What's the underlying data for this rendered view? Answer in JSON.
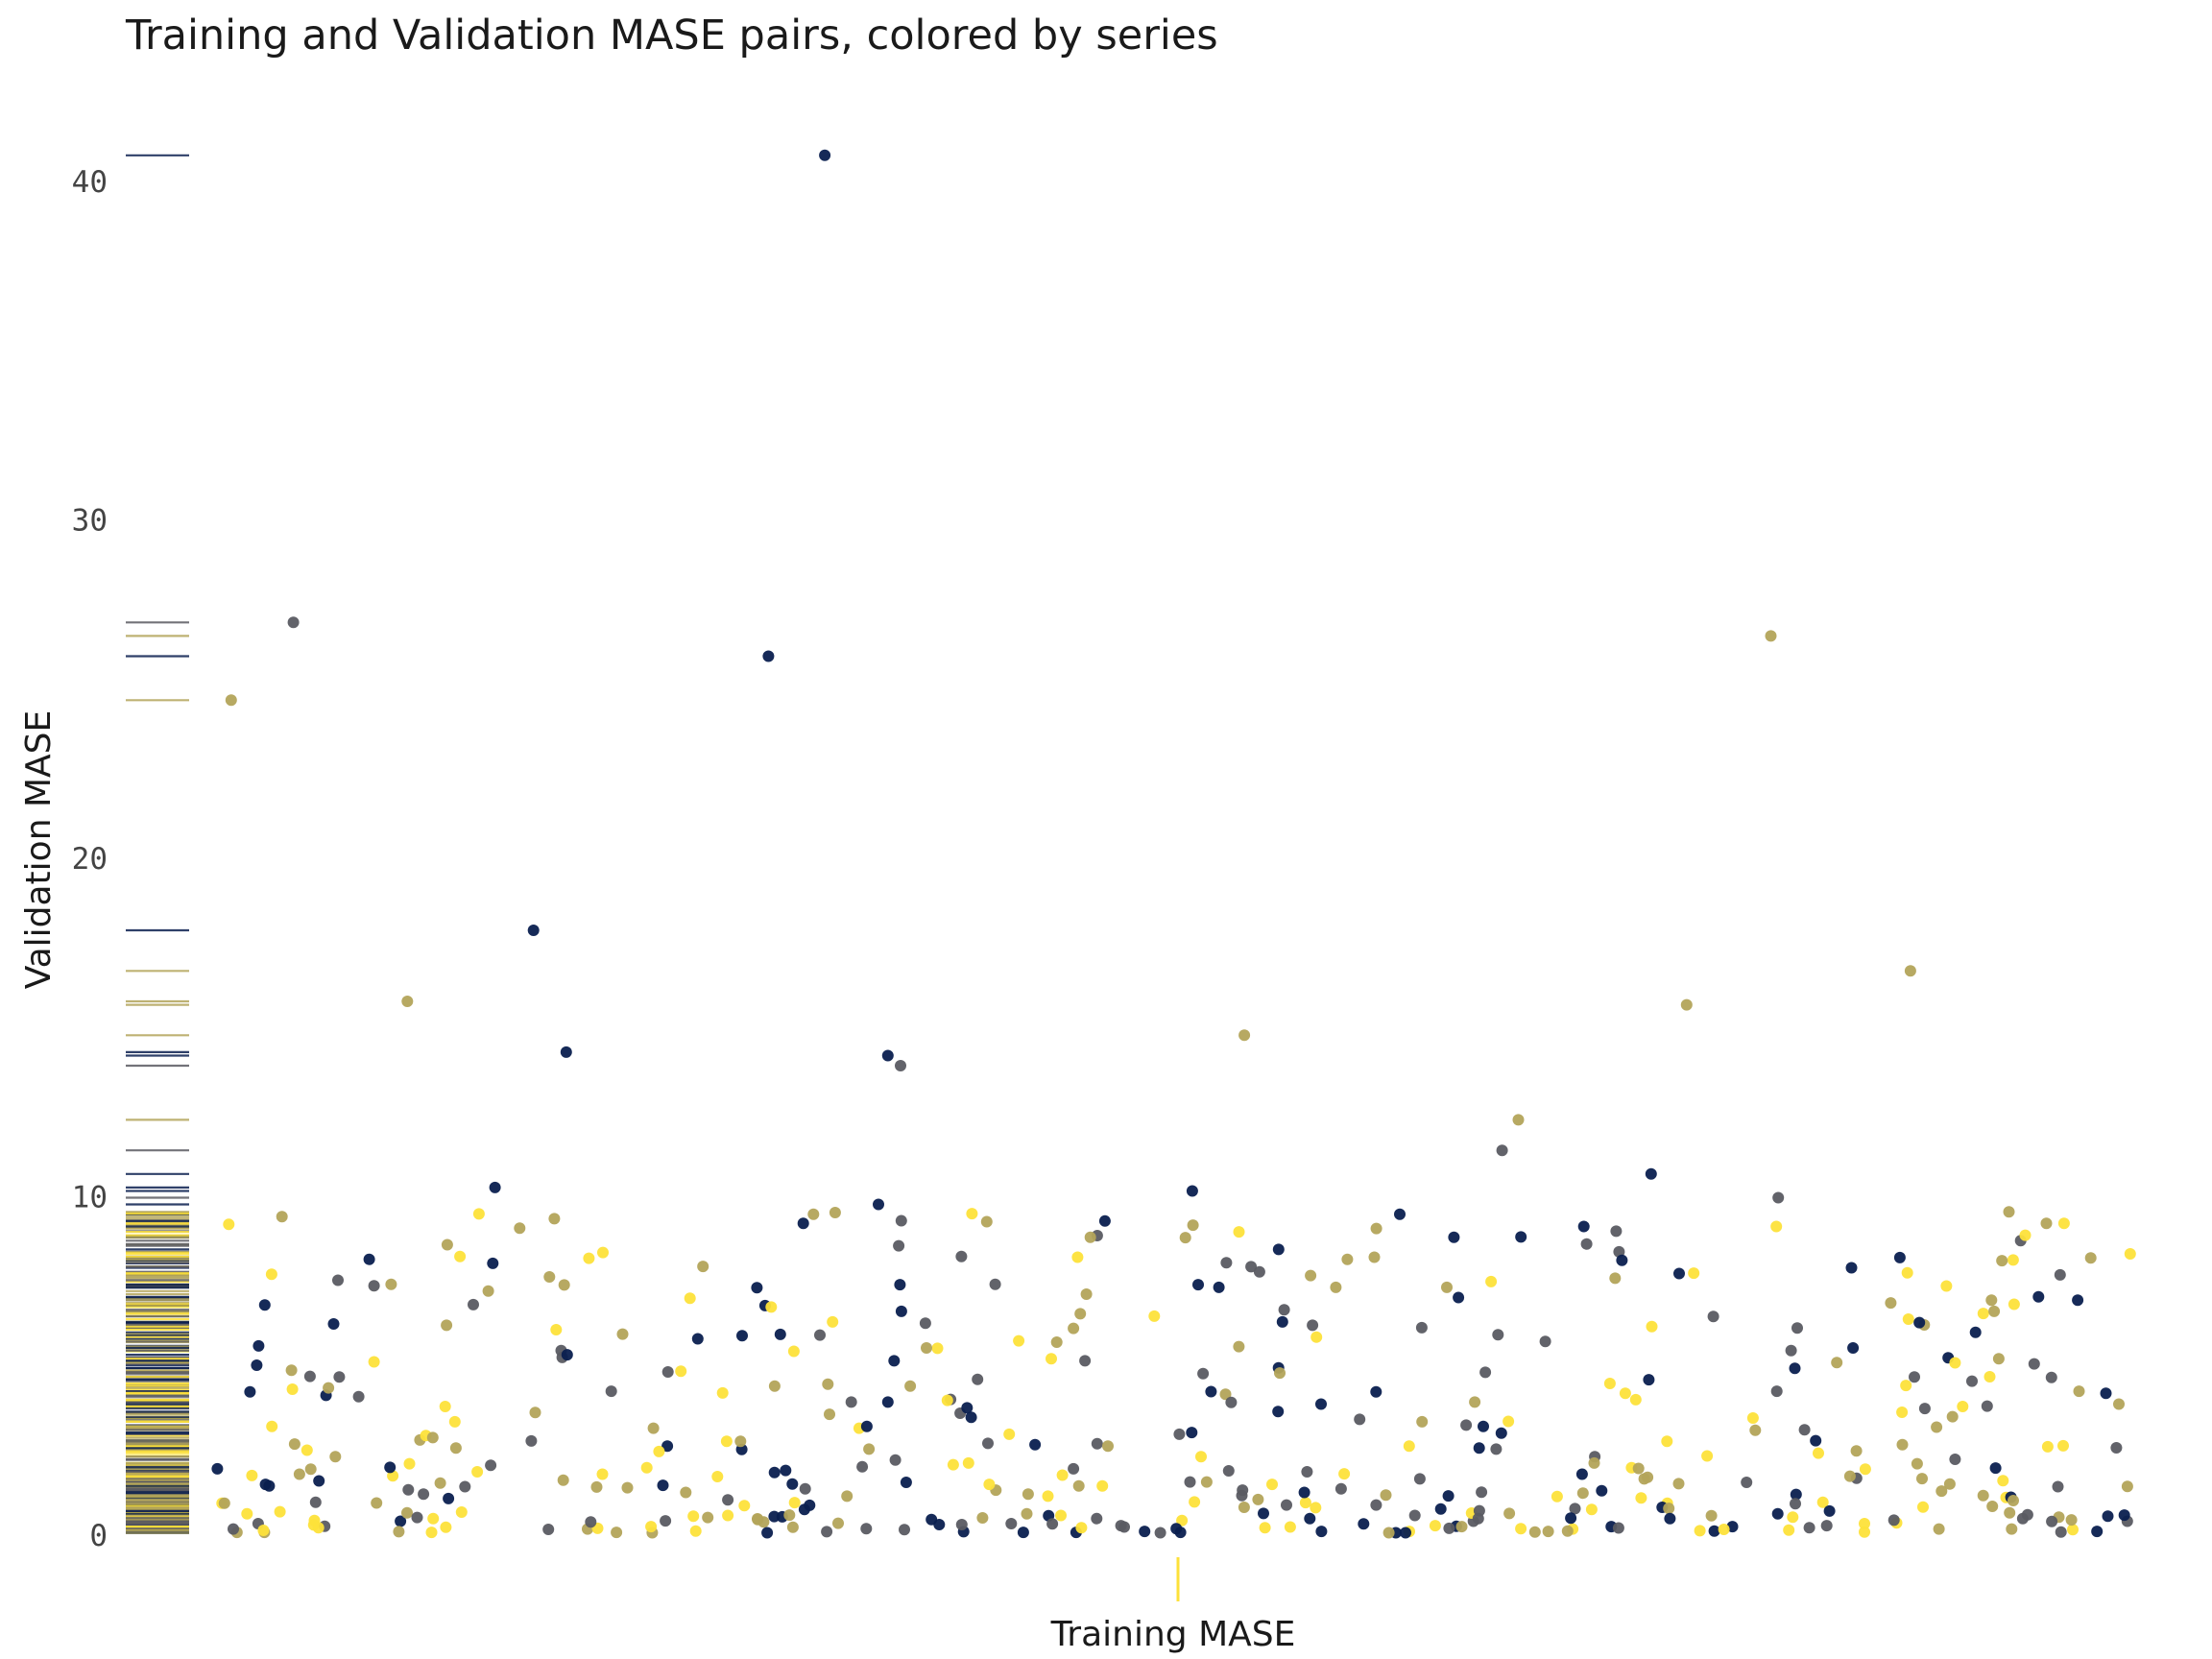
{
  "chart_data": {
    "type": "scatter",
    "title": "Training and Validation MASE pairs, colored by series",
    "xlabel": "Training MASE",
    "ylabel": "Validation MASE",
    "ylim": [
      0,
      41
    ],
    "yticks": [
      0,
      10,
      20,
      30,
      40
    ],
    "x_ticks_shown": false,
    "grid": false,
    "legend": "none",
    "marginal_rug": "left (validation), one tick on bottom axis",
    "color_scale": [
      "#0a1f4f",
      "#5a5b62",
      "#b3a45a",
      "#fde13a"
    ],
    "highlight_points": [
      {
        "y": 40.8,
        "color": "#0a1f4f"
      },
      {
        "y": 27.0,
        "color": "#5a5b62"
      },
      {
        "y": 26.6,
        "color": "#b3a45a"
      },
      {
        "y": 26.0,
        "color": "#0a1f4f"
      },
      {
        "y": 24.7,
        "color": "#b3a45a"
      },
      {
        "y": 17.9,
        "color": "#0a1f4f"
      },
      {
        "y": 16.7,
        "color": "#b3a45a"
      },
      {
        "y": 15.8,
        "color": "#b3a45a"
      },
      {
        "y": 15.7,
        "color": "#b3a45a"
      },
      {
        "y": 14.8,
        "color": "#b3a45a"
      },
      {
        "y": 14.3,
        "color": "#0a1f4f"
      },
      {
        "y": 14.2,
        "color": "#0a1f4f"
      },
      {
        "y": 13.9,
        "color": "#5a5b62"
      },
      {
        "y": 12.3,
        "color": "#b3a45a"
      },
      {
        "y": 11.4,
        "color": "#5a5b62"
      },
      {
        "y": 10.7,
        "color": "#0a1f4f"
      },
      {
        "y": 10.3,
        "color": "#0a1f4f"
      },
      {
        "y": 10.2,
        "color": "#0a1f4f"
      },
      {
        "y": 10.0,
        "color": "#5a5b62"
      },
      {
        "y": 9.8,
        "color": "#0a1f4f"
      }
    ],
    "bulk_points": {
      "count": 480,
      "y_range": [
        0.1,
        9.6
      ],
      "note": "Remaining points concentrated between 0 and 9.6, spread across all series colors"
    }
  }
}
